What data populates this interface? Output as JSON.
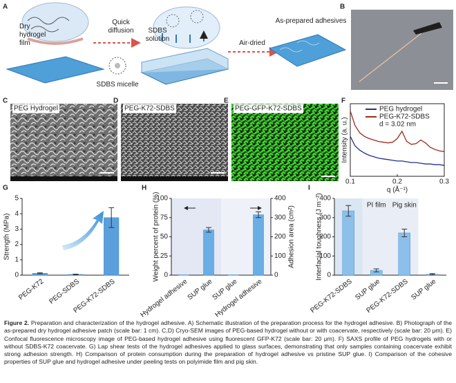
{
  "figure": {
    "letters": [
      "A",
      "B",
      "C",
      "D",
      "E",
      "F",
      "G",
      "H",
      "I"
    ],
    "scheme_labels": [
      {
        "lines": [
          "Dry",
          "hydrogel",
          "film"
        ]
      },
      {
        "lines": [
          "Quick",
          "diffusion"
        ]
      },
      {
        "lines": [
          "SDBS micelle"
        ]
      },
      {
        "lines": [
          "SDBS",
          "solution"
        ]
      },
      {
        "lines": [
          "Air-dried"
        ]
      },
      {
        "lines": [
          "As-prepared adhesives"
        ]
      }
    ],
    "image_labels": [
      "PEG Hydrogel",
      "PEG-K72-SDBS",
      "PEG-GFP-K72-SDBS"
    ]
  },
  "chart_data": [
    {
      "type": "line",
      "xlabel": "q (Å⁻¹)",
      "ylabel": "Intensity (a. u.)",
      "x": [
        0.1,
        0.11,
        0.12,
        0.13,
        0.14,
        0.15,
        0.16,
        0.17,
        0.18,
        0.19,
        0.2,
        0.21,
        0.22,
        0.23,
        0.24,
        0.25,
        0.26,
        0.27,
        0.28,
        0.29,
        0.3
      ],
      "xlim": [
        0.1,
        0.3
      ],
      "xticks": [
        0.1,
        0.2,
        0.3
      ],
      "ylim": [
        0,
        1
      ],
      "series": [
        {
          "name": "PEG hydrogel",
          "color": "#1f2f8f",
          "values": [
            0.55,
            0.42,
            0.36,
            0.32,
            0.29,
            0.27,
            0.25,
            0.24,
            0.23,
            0.22,
            0.21,
            0.21,
            0.2,
            0.19,
            0.19,
            0.18,
            0.17,
            0.17,
            0.16,
            0.16,
            0.15
          ]
        },
        {
          "name": "PEG-K72-SDBS",
          "color": "#9b2a1c",
          "values": [
            0.9,
            0.7,
            0.6,
            0.55,
            0.52,
            0.5,
            0.48,
            0.47,
            0.46,
            0.47,
            0.52,
            0.62,
            0.48,
            0.44,
            0.45,
            0.5,
            0.46,
            0.4,
            0.37,
            0.35,
            0.34
          ]
        }
      ],
      "annotation": "d = 3.02 nm",
      "legend": "upper right"
    },
    {
      "type": "bar",
      "ylabel": "Strength (MPa)",
      "categories": [
        "PEG-K72",
        "PEG-SDBS",
        "PEG-K72-SDBS"
      ],
      "ylim": [
        0,
        5
      ],
      "yticks": [
        0,
        1,
        2,
        3,
        4,
        5
      ],
      "series": [
        {
          "color": "#5b9fdc",
          "values": [
            0.12,
            0.05,
            3.75
          ],
          "errors": [
            0.03,
            0.02,
            0.65
          ]
        }
      ]
    },
    {
      "type": "bar",
      "ylabel": "Weight percent of protein (%)",
      "y2label": "Adhesion area (cm²)",
      "categories": [
        "Hydrogel adhesive",
        "SUP glue",
        "SUP glue",
        "Hydrogel adhesive"
      ],
      "ylim": [
        0,
        100
      ],
      "yticks": [
        0,
        25,
        50,
        75,
        100
      ],
      "y2lim": [
        0,
        400
      ],
      "y2ticks": [
        0,
        100,
        200,
        300,
        400
      ],
      "series": [
        {
          "color": "#6aaee6",
          "values": [
            0.5,
            59,
            null,
            null
          ],
          "errors": [
            null,
            3,
            null,
            null
          ]
        },
        {
          "color": "#6aaee6",
          "axis": "y2",
          "values": [
            null,
            null,
            2,
            315
          ],
          "errors": [
            null,
            null,
            null,
            15
          ]
        }
      ]
    },
    {
      "type": "bar",
      "ylabel": "Interfacial toughness (J m⁻²)",
      "categories": [
        "PEG-K72-SDBS",
        "SUP glue",
        "PEG-K72-SDBS",
        "SUP glue"
      ],
      "ylim": [
        0,
        400
      ],
      "yticks": [
        0,
        100,
        200,
        300,
        400
      ],
      "groups": [
        "PI film",
        "Pig skin"
      ],
      "series": [
        {
          "color": "#8cc0ea",
          "values": [
            335,
            25,
            220,
            5
          ],
          "errors": [
            28,
            8,
            20,
            3
          ]
        }
      ]
    }
  ],
  "caption": {
    "lead": "Figure 2.",
    "text": "Preparation and characterization of the hydrogel adhesive. A) Schematic illustration of the preparation process for the hydrogel adhesive. B) Photograph of the as-prepared dry hydrogel adhesive patch (scale bar: 1 cm). C,D) Cryo-SEM images of PEG-based hydrogel without or with coacervate, respectively (scale bar: 20 μm). E) Confocal fluorescence microscopy image of PEG-based hydrogel adhesive using fluorescent GFP-K72 (scale bar: 20 μm). F) SAXS profile of PEG hydrogels with or without SDBS-K72 coacervate. G) Lap shear tests of the hydrogel adhesives applied to glass surfaces, demonstrating that only samples containing coacervate exhibit strong adhesion strength. H) Comparison of protein consumption during the preparation of hydrogel adhesive vs pristine SUP glue. I) Comparison of the cohesive properties of SUP glue and hydrogel adhesive under peeling tests on polyimide film and pig skin."
  }
}
